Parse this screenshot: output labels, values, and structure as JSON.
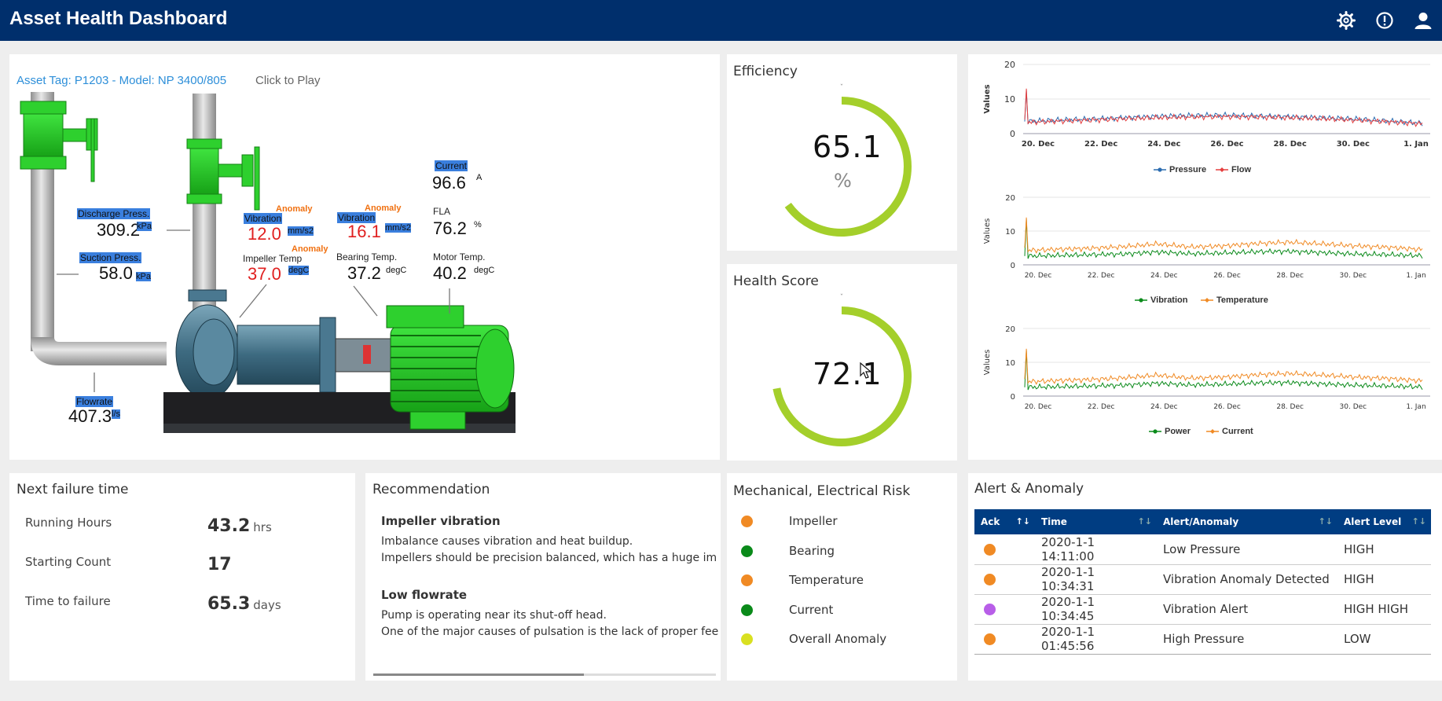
{
  "header": {
    "title": "Asset Health Dashboard",
    "icons": [
      "gear-icon",
      "alert-icon",
      "user-icon"
    ]
  },
  "pump": {
    "asset_tag": "Asset Tag: P1203 - Model: NP 3400/805",
    "click_to_play": "Click to Play",
    "readings": {
      "discharge": {
        "label": "Discharge Press.",
        "value": "309.2",
        "unit": "kPa"
      },
      "suction": {
        "label": "Suction Press.",
        "value": "58.0",
        "unit": "kPa"
      },
      "flowrate": {
        "label": "Flowrate",
        "value": "407.3",
        "unit": "l/s"
      },
      "vibration1": {
        "label": "Vibration",
        "value": "12.0",
        "unit": "mm/s2",
        "flag": "Anomaly"
      },
      "vibration2": {
        "label": "Vibration",
        "value": "16.1",
        "unit": "mm/s2",
        "flag": "Anomaly"
      },
      "impeller_temp": {
        "label": "Impeller Temp",
        "value": "37.0",
        "unit": "degC",
        "flag": "Anomaly"
      },
      "bearing_temp": {
        "label": "Bearing Temp.",
        "value": "37.2",
        "unit": "degC"
      },
      "current": {
        "label": "Current",
        "value": "96.6",
        "unit": "A"
      },
      "fla": {
        "label": "FLA",
        "value": "76.2",
        "unit": "%"
      },
      "motor_temp": {
        "label": "Motor Temp.",
        "value": "40.2",
        "unit": "degC"
      }
    }
  },
  "efficiency": {
    "title": "Efficiency",
    "value": "65.1",
    "unit": "%",
    "fraction": 0.651
  },
  "health": {
    "title": "Health Score",
    "value": "72.1",
    "fraction": 0.721
  },
  "colors": {
    "header": "#002f6c",
    "gauge": "#a4cf2b",
    "orange": "#f08a24",
    "green": "#0a8a1a",
    "yellow": "#d9e021",
    "purple": "#b85ee8",
    "table_header": "#003d82"
  },
  "chart_data": [
    {
      "type": "line",
      "ylabel": "Values",
      "ylim": [
        0,
        20
      ],
      "yticks": [
        "20",
        "10",
        "0"
      ],
      "xticks": [
        "20. Dec",
        "22. Dec",
        "24. Dec",
        "26. Dec",
        "28. Dec",
        "30. Dec",
        "1. Jan"
      ],
      "series": [
        {
          "name": "Pressure",
          "color": "#2b6cb0",
          "spike": 12.5,
          "values": [
            3.5,
            3.9,
            4.2,
            4.6,
            5.0,
            5.2,
            5.3,
            5.1,
            4.9,
            4.6,
            4.2,
            3.6,
            3.0
          ]
        },
        {
          "name": "Flow",
          "color": "#e53e3e",
          "spike": 13.0,
          "values": [
            3.2,
            3.6,
            3.9,
            4.3,
            4.6,
            4.8,
            4.9,
            4.8,
            4.6,
            4.3,
            3.9,
            3.4,
            2.8
          ]
        }
      ],
      "legend": "bottom"
    },
    {
      "type": "line",
      "ylabel": "Values",
      "ylim": [
        0,
        20
      ],
      "yticks": [
        "20",
        "10",
        "0"
      ],
      "xticks": [
        "20. Dec",
        "22. Dec",
        "24. Dec",
        "26. Dec",
        "28. Dec",
        "30. Dec",
        "1. Jan"
      ],
      "series": [
        {
          "name": "Vibration",
          "color": "#0a8a1a",
          "spike": 13.5,
          "values": [
            2.6,
            2.8,
            3.0,
            3.2,
            3.8,
            3.3,
            3.5,
            3.9,
            4.0,
            3.6,
            3.2,
            3.0,
            2.7
          ]
        },
        {
          "name": "Temperature",
          "color": "#f08a24",
          "spike": 14.0,
          "values": [
            4.2,
            4.6,
            4.9,
            5.4,
            6.2,
            5.3,
            5.6,
            6.3,
            6.7,
            6.2,
            5.6,
            5.2,
            4.5
          ]
        }
      ],
      "legend": "bottom"
    },
    {
      "type": "line",
      "ylabel": "Values",
      "ylim": [
        0,
        20
      ],
      "yticks": [
        "20",
        "10",
        "0"
      ],
      "xticks": [
        "20. Dec",
        "22. Dec",
        "24. Dec",
        "26. Dec",
        "28. Dec",
        "30. Dec",
        "1. Jan"
      ],
      "series": [
        {
          "name": "Power",
          "color": "#0a8a1a",
          "spike": 13.5,
          "values": [
            2.6,
            2.8,
            3.0,
            3.2,
            3.8,
            3.3,
            3.5,
            3.9,
            4.0,
            3.6,
            3.2,
            3.0,
            2.7
          ]
        },
        {
          "name": "Current",
          "color": "#f08a24",
          "spike": 14.0,
          "values": [
            4.2,
            4.6,
            4.9,
            5.4,
            6.2,
            5.3,
            5.6,
            6.3,
            6.7,
            6.2,
            5.6,
            5.2,
            4.5
          ]
        }
      ],
      "legend": "bottom"
    }
  ],
  "next_failure": {
    "title": "Next failure time",
    "rows": [
      {
        "label": "Running Hours",
        "value": "43.2",
        "unit": "hrs"
      },
      {
        "label": "Starting Count",
        "value": "17",
        "unit": ""
      },
      {
        "label": "Time to failure",
        "value": "65.3",
        "unit": "days"
      }
    ]
  },
  "recommendation": {
    "title": "Recommendation",
    "items": [
      {
        "heading": "Impeller vibration",
        "line1": "Imbalance causes vibration and heat buildup.",
        "line2": "Impellers should be precision balanced, which has a huge im"
      },
      {
        "heading": "Low flowrate",
        "line1": "Pump is operating near its shut-off head.",
        "line2": "One of the major causes of pulsation is the lack of proper fee"
      }
    ]
  },
  "risk": {
    "title": "Mechanical, Electrical Risk",
    "items": [
      {
        "label": "Impeller",
        "color": "#f08a24"
      },
      {
        "label": "Bearing",
        "color": "#0a8a1a"
      },
      {
        "label": "Temperature",
        "color": "#f08a24"
      },
      {
        "label": "Current",
        "color": "#0a8a1a"
      },
      {
        "label": "Overall Anomaly",
        "color": "#d9e021"
      }
    ]
  },
  "alerts": {
    "title": "Alert & Anomaly",
    "columns": [
      "Ack",
      "Time",
      "Alert/Anomaly",
      "Alert Level"
    ],
    "rows": [
      {
        "color": "#f08a24",
        "time": "2020-1-1 14:11:00",
        "alert": "Low Pressure",
        "level": "HIGH"
      },
      {
        "color": "#f08a24",
        "time": "2020-1-1 10:34:31",
        "alert": "Vibration Anomaly Detected",
        "level": "HIGH"
      },
      {
        "color": "#b85ee8",
        "time": "2020-1-1 10:34:45",
        "alert": "Vibration Alert",
        "level": "HIGH HIGH"
      },
      {
        "color": "#f08a24",
        "time": "2020-1-1 01:45:56",
        "alert": "High Pressure",
        "level": "LOW"
      }
    ]
  }
}
